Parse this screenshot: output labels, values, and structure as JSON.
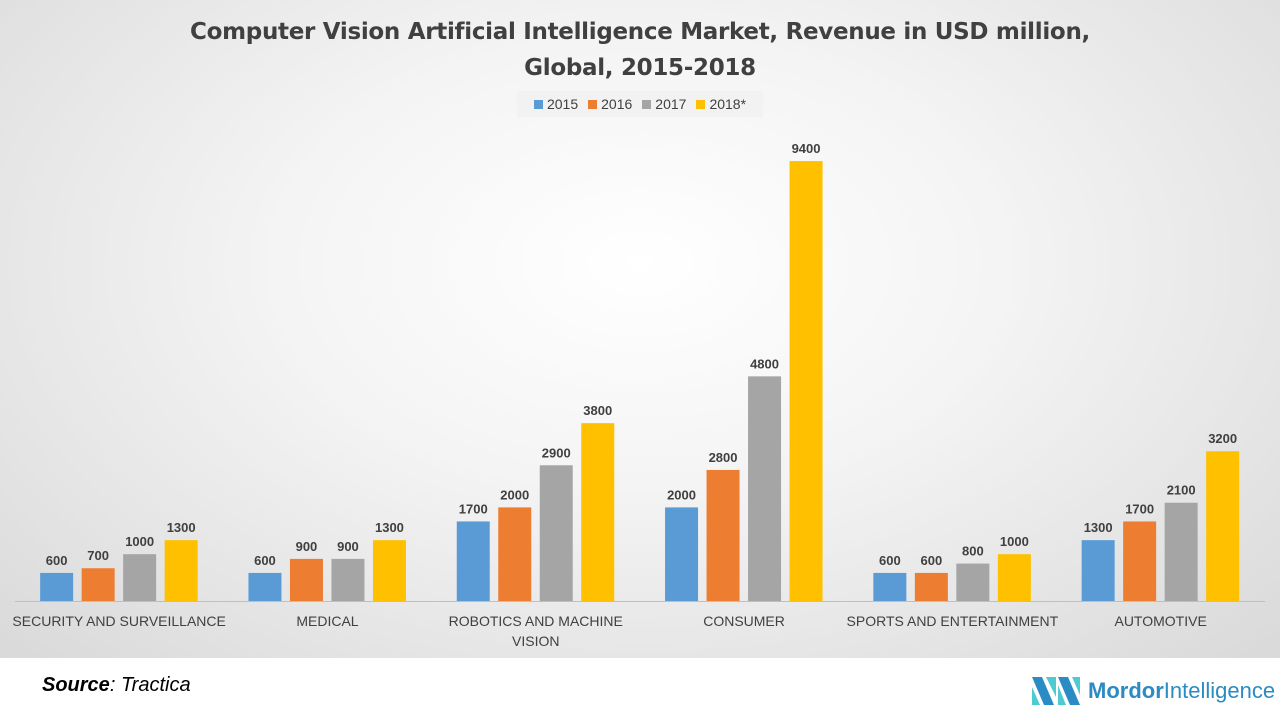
{
  "chart_data": {
    "type": "bar",
    "title": "Computer Vision Artificial Intelligence Market, Revenue in USD million, Global, 2015-2018",
    "categories": [
      "SECURITY AND SURVEILLANCE",
      "MEDICAL",
      "ROBOTICS AND MACHINE VISION",
      "CONSUMER",
      "SPORTS AND ENTERTAINMENT",
      "AUTOMOTIVE"
    ],
    "series": [
      {
        "name": "2015",
        "color": "#5b9bd5",
        "values": [
          600,
          600,
          1700,
          2000,
          600,
          1300
        ]
      },
      {
        "name": "2016",
        "color": "#ed7d31",
        "values": [
          700,
          900,
          2000,
          2800,
          600,
          1700
        ]
      },
      {
        "name": "2017",
        "color": "#a5a5a5",
        "values": [
          1000,
          900,
          2900,
          4800,
          800,
          2100
        ]
      },
      {
        "name": "2018*",
        "color": "#ffc000",
        "values": [
          1300,
          1300,
          3800,
          9400,
          1000,
          3200
        ]
      }
    ],
    "xlabel": "",
    "ylabel": "",
    "ylim": [
      0,
      10000
    ],
    "grid": false,
    "legend": "top",
    "data_labels": true
  },
  "source": {
    "label": "Source",
    "value": "Tractica"
  },
  "logo": {
    "text_bold": "Mordor",
    "text": "Intelligence"
  }
}
